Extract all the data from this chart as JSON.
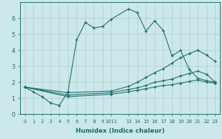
{
  "xlabel": "Humidex (Indice chaleur)",
  "background_color": "#cce8ea",
  "line_color": "#1a6b6b",
  "grid_color": "#aacccc",
  "ylim": [
    0,
    7
  ],
  "yticks": [
    0,
    1,
    2,
    3,
    4,
    5,
    6
  ],
  "num_cols": 22,
  "xtick_positions": [
    0,
    1,
    2,
    3,
    4,
    5,
    6,
    7,
    8,
    9,
    10,
    12,
    13,
    14,
    15,
    16,
    17,
    18,
    19,
    20,
    21,
    22
  ],
  "xtick_labels": [
    "0",
    "1",
    "2",
    "3",
    "4",
    "5",
    "6",
    "7",
    "8",
    "9",
    "1011",
    "13",
    "14",
    "15",
    "16",
    "17",
    "18",
    "19",
    "20",
    "21",
    "22",
    "23"
  ],
  "line1_pos": [
    0,
    1,
    2,
    3,
    4,
    5,
    6,
    7,
    8,
    9,
    10,
    12,
    13,
    14,
    15,
    16,
    17,
    18,
    19,
    20,
    21,
    22
  ],
  "line1_y": [
    1.7,
    1.4,
    1.1,
    0.7,
    0.55,
    1.4,
    4.65,
    5.75,
    5.4,
    5.5,
    5.95,
    6.6,
    6.35,
    5.2,
    5.85,
    5.25,
    3.65,
    4.0,
    2.8,
    2.25,
    2.1,
    2.0
  ],
  "line2_pos": [
    0,
    5,
    10,
    12,
    13,
    14,
    15,
    16,
    17,
    18,
    19,
    20,
    21,
    22
  ],
  "line2_y": [
    1.7,
    1.35,
    1.45,
    1.75,
    2.0,
    2.3,
    2.6,
    2.85,
    3.2,
    3.55,
    3.8,
    4.0,
    3.7,
    3.3
  ],
  "line3_pos": [
    0,
    5,
    10,
    12,
    13,
    14,
    15,
    16,
    17,
    18,
    19,
    20,
    21,
    22
  ],
  "line3_y": [
    1.7,
    1.2,
    1.35,
    1.55,
    1.65,
    1.8,
    2.0,
    2.1,
    2.2,
    2.4,
    2.55,
    2.7,
    2.5,
    2.0
  ],
  "line4_pos": [
    0,
    5,
    10,
    12,
    13,
    14,
    15,
    16,
    17,
    18,
    19,
    20,
    21,
    22
  ],
  "line4_y": [
    1.7,
    1.1,
    1.25,
    1.4,
    1.5,
    1.6,
    1.7,
    1.8,
    1.85,
    1.95,
    2.05,
    2.15,
    2.0,
    1.95
  ]
}
